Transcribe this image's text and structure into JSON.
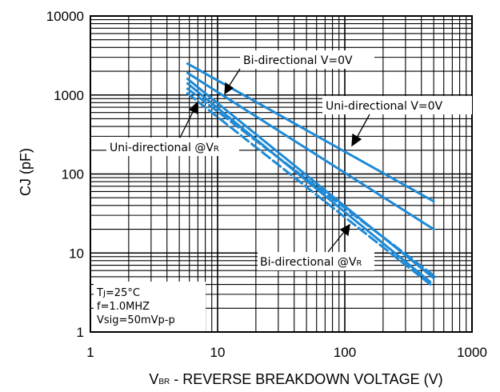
{
  "chart_data": {
    "type": "line",
    "xscale": "log",
    "yscale": "log",
    "xlim": [
      1,
      1000
    ],
    "ylim": [
      1,
      10000
    ],
    "grid": true,
    "xlabel": {
      "main": "V",
      "sub": "BR",
      "rest": " - REVERSE BREAKDOWN VOLTAGE (V)"
    },
    "ylabel": "CJ (pF)",
    "x_ticks": [
      1,
      10,
      100,
      1000
    ],
    "x_tick_labels": [
      "1",
      "10",
      "100",
      "1000"
    ],
    "y_ticks": [
      1,
      10,
      100,
      1000,
      10000
    ],
    "y_tick_labels": [
      "1",
      "10",
      "100",
      "1000",
      "10000"
    ],
    "line_color": "#1f8ad6",
    "series": [
      {
        "label_ref": "bi_0v",
        "style": "solid",
        "x": [
          5.8,
          500
        ],
        "y": [
          2500,
          45
        ]
      },
      {
        "label_ref": "uni_0v",
        "style": "solid",
        "x": [
          5.8,
          500
        ],
        "y": [
          1900,
          20
        ]
      },
      {
        "label_ref": "uni_vr",
        "style": "solid",
        "x": [
          5.8,
          500
        ],
        "y": [
          1600,
          4.8
        ]
      },
      {
        "label_ref": "uni_vr",
        "style": "solid",
        "x": [
          5.8,
          470
        ],
        "y": [
          1400,
          4.3
        ]
      },
      {
        "label_ref": "bi_vr",
        "style": "dashed",
        "x": [
          5.8,
          500
        ],
        "y": [
          1200,
          5.2
        ]
      },
      {
        "label_ref": "bi_vr",
        "style": "dashed",
        "x": [
          5.8,
          470
        ],
        "y": [
          1050,
          4.0
        ]
      }
    ],
    "annotations": {
      "bi_0v": {
        "main": "Bi-directional V=0V",
        "sub": ""
      },
      "uni_0v": {
        "main": "Uni-directional V=0V",
        "sub": ""
      },
      "uni_vr": {
        "main": "Uni-directional @V",
        "sub": "R"
      },
      "bi_vr": {
        "main": "Bi-directional @V",
        "sub": "R"
      }
    },
    "conditions": [
      {
        "main": "T",
        "sub": "J",
        "rest": "=25°C"
      },
      {
        "main": "f=1.0MHZ",
        "sub": "",
        "rest": ""
      },
      {
        "main": "Vsig=50mVp-p",
        "sub": "",
        "rest": ""
      }
    ]
  }
}
